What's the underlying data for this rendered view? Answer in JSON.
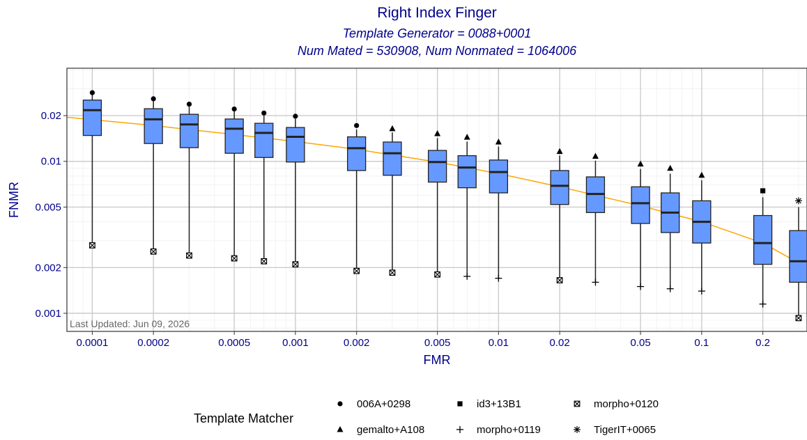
{
  "chart_data": {
    "type": "box",
    "title": "Right Index Finger",
    "subtitle_lines": [
      "Template Generator = 0088+0001",
      "Num Mated = 530908, Num Nonmated = 1064006"
    ],
    "xlabel": "FMR",
    "ylabel": "FNMR",
    "x_scale": "log",
    "y_scale": "log",
    "xlim": [
      7.5e-05,
      0.33
    ],
    "ylim": [
      0.00076,
      0.041
    ],
    "x_ticks": [
      0.0001,
      0.0002,
      0.0005,
      0.001,
      0.002,
      0.005,
      0.01,
      0.02,
      0.05,
      0.1,
      0.2
    ],
    "x_tick_labels": [
      "0.0001",
      "0.0002",
      "0.0005",
      "0.001",
      "0.002",
      "0.005",
      "0.01",
      "0.02",
      "0.05",
      "0.1",
      "0.2"
    ],
    "y_ticks": [
      0.001,
      0.002,
      0.005,
      0.01,
      0.02
    ],
    "y_tick_labels": [
      "0.001",
      "0.002",
      "0.005",
      "0.01",
      "0.02"
    ],
    "grid": true,
    "box_color": "#6699ff",
    "fit_line_color": "#ffa500",
    "fit_line": [
      [
        7.5e-05,
        0.0195
      ],
      [
        0.0002,
        0.0172
      ],
      [
        0.0005,
        0.015
      ],
      [
        0.001,
        0.0135
      ],
      [
        0.002,
        0.012
      ],
      [
        0.005,
        0.0099
      ],
      [
        0.01,
        0.0083
      ],
      [
        0.02,
        0.0068
      ],
      [
        0.05,
        0.0051
      ],
      [
        0.1,
        0.004
      ],
      [
        0.2,
        0.0029
      ],
      [
        0.33,
        0.002
      ]
    ],
    "boxes": [
      {
        "x": 0.0001,
        "q1": 0.0148,
        "median": 0.0217,
        "q3": 0.0253,
        "whisker_low": 0.0028,
        "whisker_high": 0.029,
        "extremes": [
          {
            "value": 0.0283,
            "marker": "006A+0298"
          },
          {
            "value": 0.0028,
            "marker": "morpho+0120"
          }
        ]
      },
      {
        "x": 0.0002,
        "q1": 0.0131,
        "median": 0.0189,
        "q3": 0.0222,
        "whisker_low": 0.0026,
        "whisker_high": 0.0251,
        "extremes": [
          {
            "value": 0.0258,
            "marker": "006A+0298"
          },
          {
            "value": 0.00255,
            "marker": "morpho+0120"
          }
        ]
      },
      {
        "x": 0.0003,
        "q1": 0.0123,
        "median": 0.0175,
        "q3": 0.0204,
        "whisker_low": 0.00245,
        "whisker_high": 0.023,
        "extremes": [
          {
            "value": 0.0238,
            "marker": "006A+0298"
          },
          {
            "value": 0.0024,
            "marker": "morpho+0120"
          }
        ]
      },
      {
        "x": 0.0005,
        "q1": 0.0113,
        "median": 0.0164,
        "q3": 0.019,
        "whisker_low": 0.00235,
        "whisker_high": 0.0213,
        "extremes": [
          {
            "value": 0.0221,
            "marker": "006A+0298"
          },
          {
            "value": 0.0023,
            "marker": "morpho+0120"
          }
        ]
      },
      {
        "x": 0.0007,
        "q1": 0.0106,
        "median": 0.0154,
        "q3": 0.0178,
        "whisker_low": 0.00225,
        "whisker_high": 0.02,
        "extremes": [
          {
            "value": 0.0208,
            "marker": "006A+0298"
          },
          {
            "value": 0.0022,
            "marker": "morpho+0120"
          }
        ]
      },
      {
        "x": 0.001,
        "q1": 0.0099,
        "median": 0.0145,
        "q3": 0.0167,
        "whisker_low": 0.00215,
        "whisker_high": 0.019,
        "extremes": [
          {
            "value": 0.0198,
            "marker": "006A+0298"
          },
          {
            "value": 0.0021,
            "marker": "morpho+0120"
          }
        ]
      },
      {
        "x": 0.002,
        "q1": 0.0087,
        "median": 0.0122,
        "q3": 0.0145,
        "whisker_low": 0.00195,
        "whisker_high": 0.0162,
        "extremes": [
          {
            "value": 0.0172,
            "marker": "006A+0298"
          },
          {
            "value": 0.0019,
            "marker": "morpho+0120"
          }
        ]
      },
      {
        "x": 0.003,
        "q1": 0.0081,
        "median": 0.0113,
        "q3": 0.0134,
        "whisker_low": 0.00185,
        "whisker_high": 0.0155,
        "extremes": [
          {
            "value": 0.0164,
            "marker": "gemalto+A108"
          },
          {
            "value": 0.00185,
            "marker": "morpho+0120"
          }
        ]
      },
      {
        "x": 0.005,
        "q1": 0.0073,
        "median": 0.0099,
        "q3": 0.0118,
        "whisker_low": 0.0018,
        "whisker_high": 0.0142,
        "extremes": [
          {
            "value": 0.0152,
            "marker": "gemalto+A108"
          },
          {
            "value": 0.0018,
            "marker": "morpho+0120"
          }
        ]
      },
      {
        "x": 0.007,
        "q1": 0.0067,
        "median": 0.0091,
        "q3": 0.0109,
        "whisker_low": 0.00175,
        "whisker_high": 0.0135,
        "extremes": [
          {
            "value": 0.0144,
            "marker": "gemalto+A108"
          },
          {
            "value": 0.00175,
            "marker": "morpho+0119"
          }
        ]
      },
      {
        "x": 0.01,
        "q1": 0.0062,
        "median": 0.0085,
        "q3": 0.0102,
        "whisker_low": 0.0017,
        "whisker_high": 0.0125,
        "extremes": [
          {
            "value": 0.0134,
            "marker": "gemalto+A108"
          },
          {
            "value": 0.0017,
            "marker": "morpho+0119"
          }
        ]
      },
      {
        "x": 0.02,
        "q1": 0.0052,
        "median": 0.0069,
        "q3": 0.0087,
        "whisker_low": 0.00165,
        "whisker_high": 0.0109,
        "extremes": [
          {
            "value": 0.0116,
            "marker": "gemalto+A108"
          },
          {
            "value": 0.00165,
            "marker": "morpho+0120"
          }
        ]
      },
      {
        "x": 0.03,
        "q1": 0.0046,
        "median": 0.0061,
        "q3": 0.0079,
        "whisker_low": 0.0016,
        "whisker_high": 0.0101,
        "extremes": [
          {
            "value": 0.0108,
            "marker": "gemalto+A108"
          },
          {
            "value": 0.0016,
            "marker": "morpho+0119"
          }
        ]
      },
      {
        "x": 0.05,
        "q1": 0.0039,
        "median": 0.0053,
        "q3": 0.0068,
        "whisker_low": 0.0015,
        "whisker_high": 0.0089,
        "extremes": [
          {
            "value": 0.0096,
            "marker": "gemalto+A108"
          },
          {
            "value": 0.0015,
            "marker": "morpho+0119"
          }
        ]
      },
      {
        "x": 0.07,
        "q1": 0.0034,
        "median": 0.0046,
        "q3": 0.0062,
        "whisker_low": 0.00145,
        "whisker_high": 0.0083,
        "extremes": [
          {
            "value": 0.009,
            "marker": "gemalto+A108"
          },
          {
            "value": 0.00145,
            "marker": "morpho+0119"
          }
        ]
      },
      {
        "x": 0.1,
        "q1": 0.0029,
        "median": 0.004,
        "q3": 0.0055,
        "whisker_low": 0.0014,
        "whisker_high": 0.0075,
        "extremes": [
          {
            "value": 0.0081,
            "marker": "gemalto+A108"
          },
          {
            "value": 0.0014,
            "marker": "morpho+0119"
          }
        ]
      },
      {
        "x": 0.2,
        "q1": 0.0021,
        "median": 0.0029,
        "q3": 0.0044,
        "whisker_low": 0.00115,
        "whisker_high": 0.0058,
        "extremes": [
          {
            "value": 0.0064,
            "marker": "id3+13B1"
          },
          {
            "value": 0.00115,
            "marker": "morpho+0119"
          }
        ]
      },
      {
        "x": 0.3,
        "q1": 0.0016,
        "median": 0.0022,
        "q3": 0.0035,
        "whisker_low": 0.00095,
        "whisker_high": 0.005,
        "extremes": [
          {
            "value": 0.0055,
            "marker": "TigerIT+0065"
          },
          {
            "value": 0.00093,
            "marker": "morpho+0120"
          }
        ]
      }
    ],
    "legend": {
      "title": "Template Matcher",
      "placement": "bottom",
      "entries": [
        {
          "label": "006A+0298",
          "marker": "circle"
        },
        {
          "label": "id3+13B1",
          "marker": "square"
        },
        {
          "label": "morpho+0120",
          "marker": "boxed-x"
        },
        {
          "label": "gemalto+A108",
          "marker": "triangle"
        },
        {
          "label": "morpho+0119",
          "marker": "plus"
        },
        {
          "label": "TigerIT+0065",
          "marker": "asterisk"
        }
      ]
    },
    "annotation": "Last Updated: Jun 09, 2026"
  }
}
